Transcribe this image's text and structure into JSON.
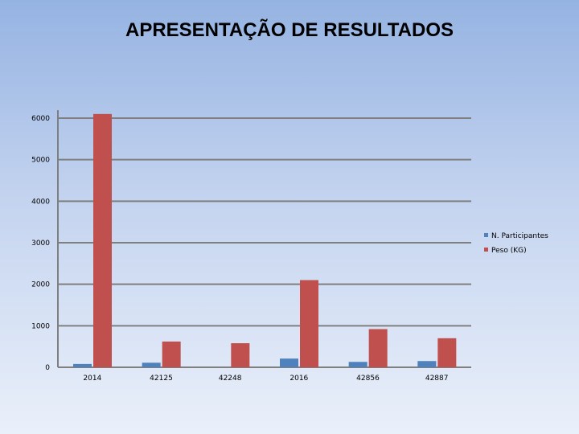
{
  "title": "APRESENTAÇÃO DE RESULTADOS",
  "chart_data": {
    "type": "bar",
    "title": "",
    "xlabel": "",
    "ylabel": "",
    "categories": [
      "2014",
      "42125",
      "42248",
      "2016",
      "42856",
      "42887"
    ],
    "series": [
      {
        "name": "N. Participantes",
        "color": "#4f81bd",
        "values": [
          80,
          110,
          0,
          210,
          130,
          150
        ]
      },
      {
        "name": "Peso (KG)",
        "color": "#c0504d",
        "values": [
          6100,
          620,
          580,
          2100,
          920,
          700
        ]
      }
    ],
    "ylim": [
      0,
      6000
    ],
    "yticks": [
      0,
      1000,
      2000,
      3000,
      4000,
      5000,
      6000
    ],
    "grid": true,
    "legend_position": "right"
  }
}
